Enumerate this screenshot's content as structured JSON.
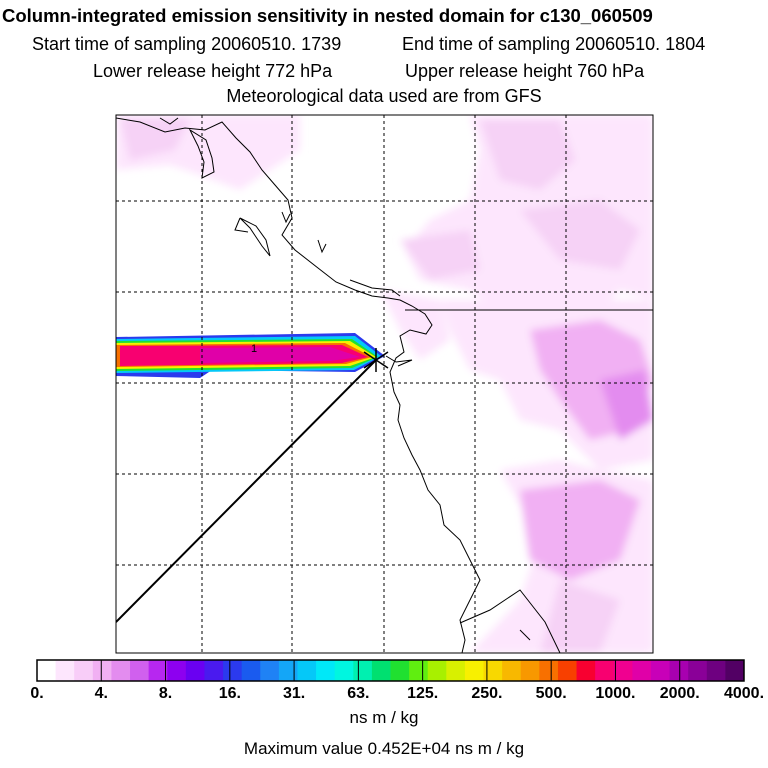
{
  "header": {
    "title": "Column-integrated emission sensitivity in nested domain for c130_060509",
    "start_label": "Start time of sampling 20060510.  1739",
    "end_label": "End time of sampling 20060510.  1804",
    "lower_label": "Lower release height  772 hPa",
    "upper_label": "Upper release height  760 hPa",
    "met_label": "Meteorological data used are from GFS"
  },
  "colorbar": {
    "tick_labels": [
      "0.",
      "4.",
      "8.",
      "16.",
      "31.",
      "63.",
      "125.",
      "250.",
      "500.",
      "1000.",
      "2000.",
      "4000."
    ],
    "colors": [
      "#ffffff",
      "#fde6fd",
      "#f8cdf8",
      "#f1b0f3",
      "#e38cef",
      "#d060ee",
      "#b727f0",
      "#8d00f0",
      "#6a00f2",
      "#4a1aef",
      "#2b3aee",
      "#1a5bef",
      "#1f82f5",
      "#14a6f7",
      "#05c8f8",
      "#00e8f8",
      "#00f6e0",
      "#00f0b0",
      "#00e070",
      "#20e030",
      "#60ee10",
      "#a8f000",
      "#d8f000",
      "#f8f000",
      "#f8d800",
      "#f8b800",
      "#f89800",
      "#f87000",
      "#f84000",
      "#f80030",
      "#f80070",
      "#f00090",
      "#e000a8",
      "#c800b8",
      "#a800b0",
      "#8a0098",
      "#6e0080",
      "#520064"
    ],
    "units": "ns m / kg"
  },
  "footer": {
    "max_value": "Maximum value  0.452E+04 ns m / kg"
  },
  "chart_data": {
    "type": "heatmap",
    "title": "Column-integrated emission sensitivity in nested domain for c130_060509",
    "colorbar_scale": "log",
    "colorbar_levels": [
      0,
      4,
      8,
      16,
      31,
      63,
      125,
      250,
      500,
      1000,
      2000,
      4000
    ],
    "colorbar_units": "ns m / kg",
    "max_value": 4520,
    "grid": true,
    "features": [
      "coastline",
      "release-point-marker",
      "flight-track-line",
      "high-sensitivity-plume"
    ],
    "plume_peak_range": [
      1000,
      4000
    ]
  }
}
